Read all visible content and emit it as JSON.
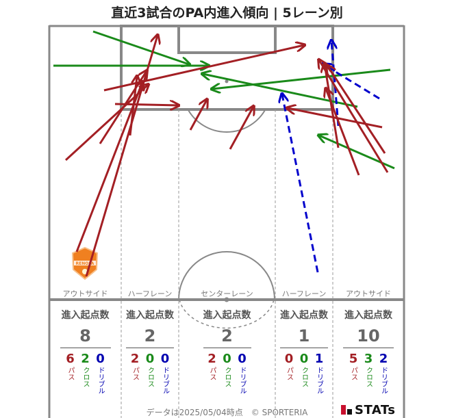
{
  "title": "直近3試合のPA内進入傾向 | 5レーン別",
  "lanes": [
    {
      "label": "アウトサイド",
      "stat_title": "進入起点数",
      "total": "8",
      "pass": "6",
      "cross": "2",
      "dribble": "0"
    },
    {
      "label": "ハーフレーン",
      "stat_title": "進入起点数",
      "total": "2",
      "pass": "2",
      "cross": "0",
      "dribble": "0"
    },
    {
      "label": "センターレーン",
      "stat_title": "進入起点数",
      "total": "2",
      "pass": "2",
      "cross": "0",
      "dribble": "0"
    },
    {
      "label": "ハーフレーン",
      "stat_title": "進入起点数",
      "total": "1",
      "pass": "0",
      "cross": "0",
      "dribble": "1"
    },
    {
      "label": "アウトサイド",
      "stat_title": "進入起点数",
      "total": "10",
      "pass": "5",
      "cross": "3",
      "dribble": "2"
    }
  ],
  "legend": {
    "pass": "パス",
    "cross": "クロス",
    "dribble": "ドリブル"
  },
  "colors": {
    "pass": "#a31f24",
    "cross": "#1a8a1a",
    "dribble": "#0000cc"
  },
  "team_logo": "RENOFA",
  "footer": "データは2025/05/04時点　© SPORTERIA",
  "brand": "STATs"
}
